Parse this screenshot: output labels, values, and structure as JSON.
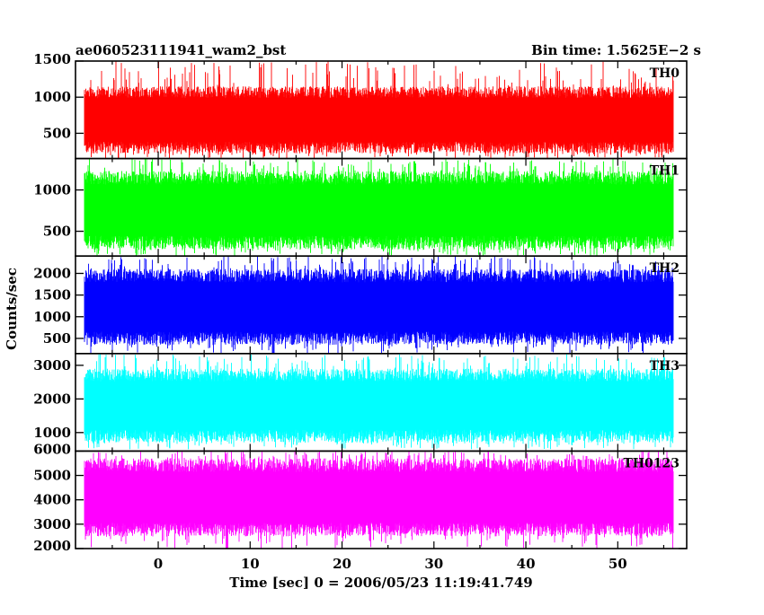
{
  "header": {
    "left_title": "ae060523111941_wam2_bst",
    "right_title": "Bin time: 1.5625E−2 s"
  },
  "chart_data": {
    "type": "line",
    "style": "histogram",
    "xlabel": "Time [sec] 0 = 2006/05/23 11:19:41.749",
    "ylabel": "Counts/sec",
    "xlim": [
      -9,
      57.5
    ],
    "x_ticks": [
      0,
      10,
      20,
      30,
      40,
      50
    ],
    "x_tick_labels": [
      "0",
      "10",
      "20",
      "30",
      "40",
      "50"
    ],
    "data_x_range": [
      -8,
      56
    ],
    "bin_time": 0.015625,
    "grid": false,
    "panels": [
      {
        "label": "TH0",
        "color": "#ff0000",
        "ylim": [
          150,
          1500
        ],
        "y_ticks": [
          500,
          1000,
          1500
        ],
        "y_tick_labels": [
          "500",
          "1000",
          "1500"
        ],
        "typical_range": [
          220,
          1150
        ],
        "min": 150,
        "max": 1500
      },
      {
        "label": "TH1",
        "color": "#00ff00",
        "ylim": [
          200,
          1380
        ],
        "y_ticks": [
          500,
          1000
        ],
        "y_tick_labels": [
          "500",
          "1000"
        ],
        "typical_range": [
          280,
          1230
        ],
        "min": 200,
        "max": 1380
      },
      {
        "label": "TH2",
        "color": "#0000ff",
        "ylim": [
          150,
          2400
        ],
        "y_ticks": [
          500,
          1000,
          1500,
          2000
        ],
        "y_tick_labels": [
          "500",
          "1000",
          "1500",
          "2000"
        ],
        "typical_range": [
          350,
          2100
        ],
        "min": 150,
        "max": 2400
      },
      {
        "label": "TH3",
        "color": "#00ffff",
        "ylim": [
          450,
          3350
        ],
        "y_ticks": [
          1000,
          2000,
          3000
        ],
        "y_tick_labels": [
          "1000",
          "2000",
          "3000"
        ],
        "typical_range": [
          700,
          2900
        ],
        "min": 500,
        "max": 3350
      },
      {
        "label": "TH0123",
        "color": "#ff00ff",
        "ylim": [
          2000,
          6000
        ],
        "y_ticks": [
          2000,
          3000,
          4000,
          5000,
          6000
        ],
        "y_tick_labels": [
          "2000",
          "3000",
          "4000",
          "5000",
          "6000"
        ],
        "typical_range": [
          2500,
          5700
        ],
        "min": 2000,
        "max": 6000
      }
    ]
  }
}
